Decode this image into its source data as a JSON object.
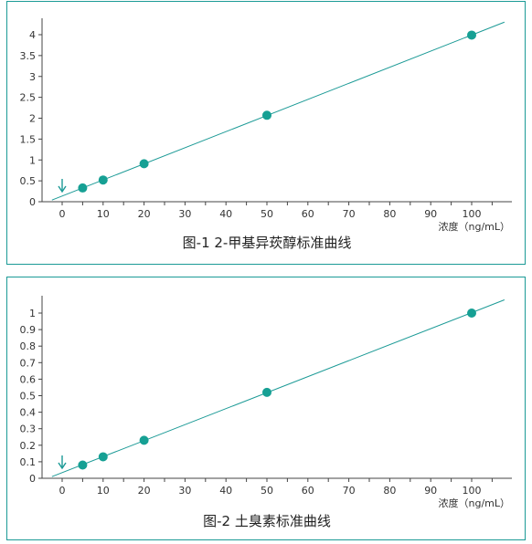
{
  "colors": {
    "line": "#1b9a96",
    "point": "#16a094",
    "border": "#1b9a96",
    "axis": "#444444",
    "text": "#333333"
  },
  "chart_data": [
    {
      "type": "scatter",
      "caption": "图-1  2-甲基异莰醇标准曲线",
      "xlabel": "浓度（ng/mL）",
      "ylabel": "",
      "xlim": [
        -5,
        110
      ],
      "ylim": [
        0,
        4.3
      ],
      "x_ticks": [
        "0",
        "10",
        "20",
        "30",
        "40",
        "50",
        "60",
        "70",
        "80",
        "90",
        "100"
      ],
      "y_ticks": [
        "0",
        "0.5",
        "1",
        "1.5",
        "2",
        "2.5",
        "3",
        "3.5",
        "4"
      ],
      "x_tick_values": [
        0,
        10,
        20,
        30,
        40,
        50,
        60,
        70,
        80,
        90,
        100
      ],
      "y_tick_values": [
        0,
        0.5,
        1,
        1.5,
        2,
        2.5,
        3,
        3.5,
        4
      ],
      "points": {
        "x": [
          5,
          10,
          20,
          50,
          100
        ],
        "y": [
          0.33,
          0.52,
          0.91,
          2.07,
          3.99
        ]
      },
      "fit_line": {
        "x": [
          -2.5,
          108
        ],
        "y": [
          0.04,
          4.3
        ]
      },
      "arrow_x": 0,
      "grid": false
    },
    {
      "type": "scatter",
      "caption": "图-2  土臭素标准曲线",
      "xlabel": "浓度（ng/mL）",
      "ylabel": "",
      "xlim": [
        -5,
        110
      ],
      "ylim": [
        0,
        1.08
      ],
      "x_ticks": [
        "0",
        "10",
        "20",
        "30",
        "40",
        "50",
        "60",
        "70",
        "80",
        "90",
        "100"
      ],
      "y_ticks": [
        "0",
        "0.1",
        "0.2",
        "0.3",
        "0.4",
        "0.5",
        "0.6",
        "0.7",
        "0.8",
        "0.9",
        "1"
      ],
      "x_tick_values": [
        0,
        10,
        20,
        30,
        40,
        50,
        60,
        70,
        80,
        90,
        100
      ],
      "y_tick_values": [
        0,
        0.1,
        0.2,
        0.3,
        0.4,
        0.5,
        0.6,
        0.7,
        0.8,
        0.9,
        1
      ],
      "points": {
        "x": [
          5,
          10,
          20,
          50,
          100
        ],
        "y": [
          0.08,
          0.13,
          0.23,
          0.52,
          1.0
        ]
      },
      "fit_line": {
        "x": [
          -2.5,
          108
        ],
        "y": [
          0.01,
          1.08
        ]
      },
      "arrow_x": 0,
      "grid": false
    }
  ]
}
